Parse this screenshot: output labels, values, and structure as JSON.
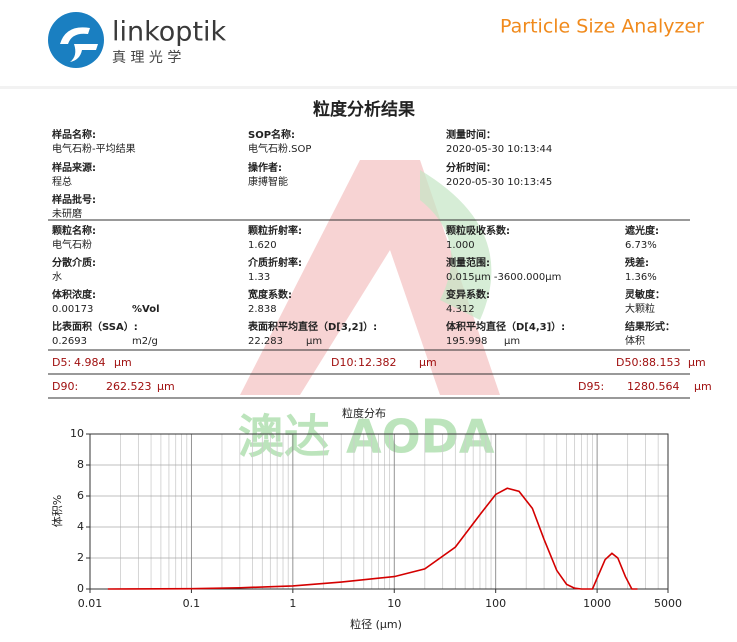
{
  "header": {
    "brand": "linkoptik",
    "brand_cn": "真 理 光 学",
    "product": "Particle Size Analyzer"
  },
  "title": "粒度分析结果",
  "watermark": "澳达 AODA",
  "info_rows": [
    [
      {
        "label": "样品名称:",
        "value": "电气石粉-平均结果"
      },
      {
        "label": "SOP名称:",
        "value": "电气石粉.SOP"
      },
      {
        "label": "测量时间：",
        "value": "2020-05-30 10:13:44"
      }
    ],
    [
      {
        "label": "样品来源:",
        "value": "程总"
      },
      {
        "label": "操作者:",
        "value": "康搏智能"
      },
      {
        "label": "分析时间：",
        "value": "2020-05-30 10:13:45"
      }
    ],
    [
      {
        "label": "样品批号:",
        "value": "未研磨"
      }
    ],
    [
      {
        "label": "颗粒名称:",
        "value": "电气石粉"
      },
      {
        "label": "颗粒折射率:",
        "value": "1.620"
      },
      {
        "label": "颗粒吸收系数:",
        "value": "1.000"
      },
      {
        "label": "遮光度:",
        "value": "6.73%"
      }
    ],
    [
      {
        "label": "分散介质:",
        "value": "水"
      },
      {
        "label": "介质折射率:",
        "value": "1.33"
      },
      {
        "label": "测量范围:",
        "value": "0.015μm -3600.000μm"
      },
      {
        "label": "残差:",
        "value": "1.36%"
      }
    ],
    [
      {
        "label": "体积浓度:",
        "value": "0.00173",
        "unit": "%Vol"
      },
      {
        "label": "宽度系数:",
        "value": "2.838"
      },
      {
        "label": "变异系数:",
        "value": "4.312"
      },
      {
        "label": "灵敏度：",
        "value": "大颗粒"
      }
    ],
    [
      {
        "label": "比表面积（SSA）:",
        "value": "0.2693",
        "unit": "m2/g"
      },
      {
        "label": "表面积平均直径（D[3,2]）:",
        "value": "22.283",
        "unit": "μm"
      },
      {
        "label": "体积平均直径（D[4,3]）:",
        "value": "195.998",
        "unit": "μm"
      },
      {
        "label": "结果形式：",
        "value": "体积"
      }
    ]
  ],
  "d_values": [
    {
      "label": "D5:",
      "value": "4.984",
      "unit": "μm"
    },
    {
      "label": "D10:",
      "value": "12.382",
      "unit": "μm"
    },
    {
      "label": "D50:",
      "value": "88.153",
      "unit": "μm"
    },
    {
      "label": "D90:",
      "value": "262.523",
      "unit": "μm"
    },
    {
      "label": "D95:",
      "value": "1280.564",
      "unit": "μm"
    }
  ],
  "chart_data": {
    "type": "line",
    "title": "粒度分布",
    "x_label": "粒径 (μm)",
    "y_label": "体积%",
    "x": [
      0.015,
      0.1,
      0.3,
      1,
      3,
      10,
      20,
      40,
      70,
      100,
      130,
      170,
      230,
      300,
      400,
      500,
      600,
      700,
      900,
      1000,
      1200,
      1400,
      1600,
      1900,
      2200,
      2500
    ],
    "values": [
      0,
      0.02,
      0.08,
      0.2,
      0.45,
      0.8,
      1.3,
      2.7,
      4.8,
      6.1,
      6.5,
      6.3,
      5.2,
      3.2,
      1.2,
      0.3,
      0.05,
      0,
      0,
      0.7,
      1.9,
      2.3,
      2.0,
      0.8,
      0,
      0
    ],
    "color": "#d40000",
    "xscale": "log",
    "xlim": [
      0.01,
      5000
    ],
    "ylim": [
      0,
      10
    ],
    "xticks": [
      0.01,
      0.1,
      1,
      10,
      100,
      1000,
      5000
    ],
    "yticks": [
      0,
      2,
      4,
      6,
      8,
      10
    ],
    "grid": true,
    "xminor_grid": true
  }
}
